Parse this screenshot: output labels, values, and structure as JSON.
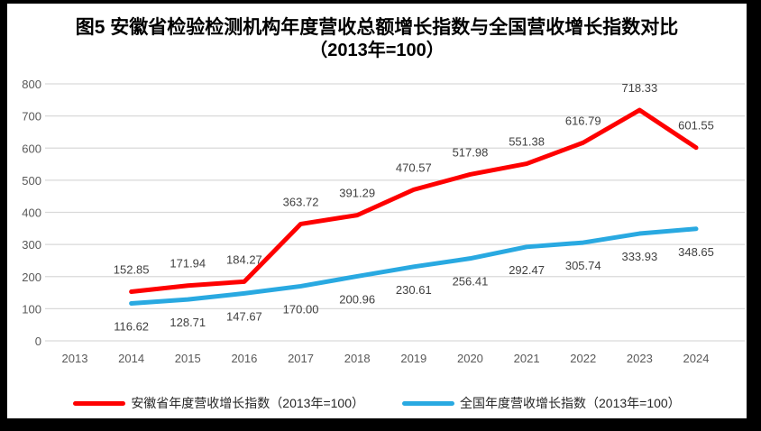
{
  "title": {
    "line1": "图5  安徽省检验检测机构年度营收总额增长指数与全国营收增长指数对比",
    "line2": "（2013年=100）"
  },
  "chart_data": {
    "type": "line",
    "title": "图5 安徽省检验检测机构年度营收总额增长指数与全国营收增长指数对比（2013年=100）",
    "categories": [
      "2013",
      "2014",
      "2015",
      "2016",
      "2017",
      "2018",
      "2019",
      "2020",
      "2021",
      "2022",
      "2023",
      "2024"
    ],
    "series": [
      {
        "name": "安徽省年度营收增长指数（2013年=100）",
        "color": "#FE0000",
        "label_position": "above",
        "values": [
          null,
          152.85,
          171.94,
          184.27,
          363.72,
          391.29,
          470.57,
          517.98,
          551.38,
          616.79,
          718.33,
          601.55
        ]
      },
      {
        "name": "全国年度营收增长指数（2013年=100）",
        "color": "#29A9E1",
        "label_position": "below",
        "values": [
          null,
          116.62,
          128.71,
          147.67,
          170.0,
          200.96,
          230.61,
          256.41,
          292.47,
          305.74,
          333.93,
          348.65
        ]
      }
    ],
    "ylim": [
      0,
      800
    ],
    "yticks": [
      0,
      100,
      200,
      300,
      400,
      500,
      600,
      700,
      800
    ],
    "grid": true,
    "legend_position": "bottom",
    "value_format": "2dp",
    "colors": {
      "gridline": "#D9D9D9",
      "axis_labels": "#595959",
      "data_labels": "#404040"
    }
  }
}
